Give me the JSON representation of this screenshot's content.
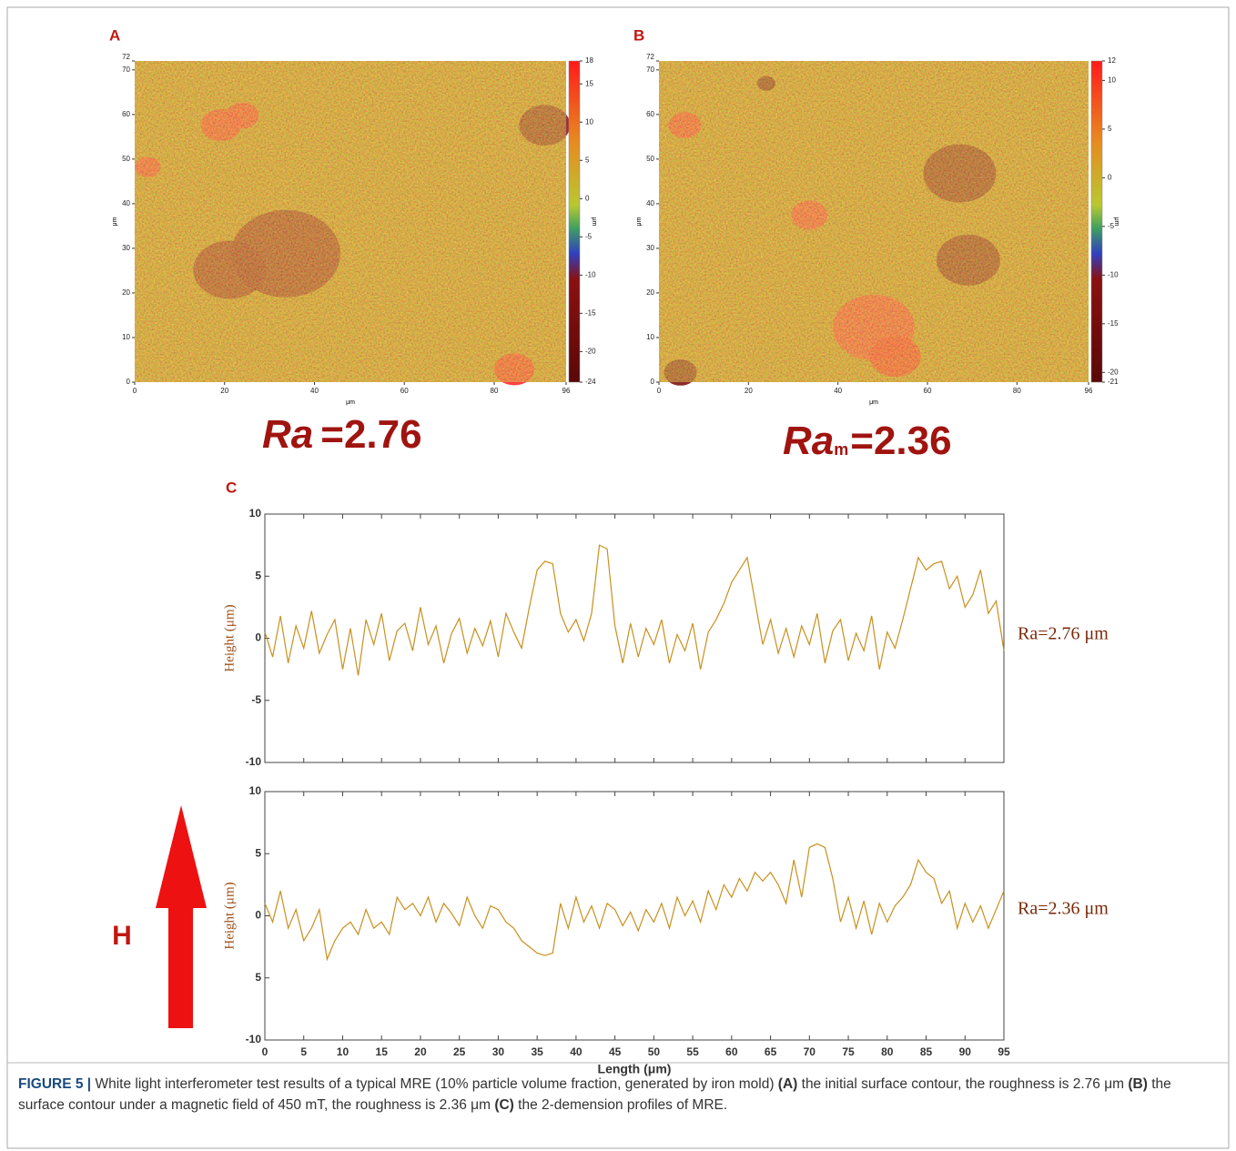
{
  "panel_a": {
    "label": "A",
    "xticks": [
      0,
      20,
      40,
      60,
      80,
      96
    ],
    "xlim": [
      0,
      96
    ],
    "yticks": [
      0,
      10,
      20,
      30,
      40,
      50,
      60,
      70,
      72
    ],
    "ylim": [
      0,
      72
    ],
    "x_axis_label": "μm",
    "y_axis_label": "μm",
    "colorbar_ticks": [
      18,
      15,
      10,
      5,
      0,
      -5,
      -10,
      -15,
      -20,
      -24
    ],
    "colorbar_lim": [
      -24,
      18
    ],
    "colorbar_label": "μm",
    "ra": {
      "symbol": "Ra",
      "value": "=2.76"
    }
  },
  "panel_b": {
    "label": "B",
    "xticks": [
      0,
      20,
      40,
      60,
      80,
      96
    ],
    "xlim": [
      0,
      96
    ],
    "yticks": [
      0,
      10,
      20,
      30,
      40,
      50,
      60,
      70,
      72
    ],
    "ylim": [
      0,
      72
    ],
    "x_axis_label": "μm",
    "y_axis_label": "μm",
    "colorbar_ticks": [
      12,
      10,
      5,
      0,
      -5,
      -10,
      -15,
      -20,
      -21
    ],
    "colorbar_lim": [
      -21,
      12
    ],
    "colorbar_label": "μm",
    "ra": {
      "symbol": "Ra",
      "subscript": "m",
      "value": "=2.36"
    }
  },
  "panel_c": {
    "label": "C",
    "type": "line",
    "x_axis_label": "Length (μm)",
    "xlim": [
      0,
      95
    ],
    "xticks": [
      0,
      5,
      10,
      15,
      20,
      25,
      30,
      35,
      40,
      45,
      50,
      55,
      60,
      65,
      70,
      75,
      80,
      85,
      90,
      95
    ],
    "x": [
      0,
      1,
      2,
      3,
      4,
      5,
      6,
      7,
      8,
      9,
      10,
      11,
      12,
      13,
      14,
      15,
      16,
      17,
      18,
      19,
      20,
      21,
      22,
      23,
      24,
      25,
      26,
      27,
      28,
      29,
      30,
      31,
      32,
      33,
      34,
      35,
      36,
      37,
      38,
      39,
      40,
      41,
      42,
      43,
      44,
      45,
      46,
      47,
      48,
      49,
      50,
      51,
      52,
      53,
      54,
      55,
      56,
      57,
      58,
      59,
      60,
      61,
      62,
      63,
      64,
      65,
      66,
      67,
      68,
      69,
      70,
      71,
      72,
      73,
      74,
      75,
      76,
      77,
      78,
      79,
      80,
      81,
      82,
      83,
      84,
      85,
      86,
      87,
      88,
      89,
      90,
      91,
      92,
      93,
      94,
      95
    ],
    "plots": [
      {
        "y_axis_label": "Height (μm)",
        "annotation": "Ra=2.76 μm",
        "color": "#c8901e",
        "ylim": [
          -10,
          10
        ],
        "yticks": [
          -10,
          -5,
          0,
          5,
          10
        ],
        "values": [
          0.5,
          -1.5,
          1.8,
          -2,
          1,
          -0.8,
          2.2,
          -1.2,
          0.3,
          1.5,
          -2.5,
          0.8,
          -3,
          1.5,
          -0.5,
          2,
          -1.8,
          0.6,
          1.2,
          -1,
          2.5,
          -0.5,
          1,
          -2,
          0.4,
          1.6,
          -1.2,
          0.8,
          -0.6,
          1.4,
          -1.5,
          2,
          0.5,
          -0.8,
          2.5,
          5.5,
          6.2,
          6,
          2,
          0.5,
          1.5,
          -0.2,
          2,
          7.5,
          7.2,
          1,
          -2,
          1.2,
          -1.5,
          0.8,
          -0.5,
          1.5,
          -2,
          0.3,
          -1,
          1.2,
          -2.5,
          0.5,
          1.5,
          2.8,
          4.5,
          5.5,
          6.5,
          3,
          -0.5,
          1.5,
          -1.2,
          0.8,
          -1.5,
          1,
          -0.5,
          2,
          -2,
          0.6,
          1.5,
          -1.8,
          0.4,
          -1,
          1.8,
          -2.5,
          0.5,
          -0.8,
          1.5,
          4,
          6.5,
          5.5,
          6,
          6.2,
          4,
          5,
          2.5,
          3.5,
          5.5,
          2,
          3,
          -1
        ]
      },
      {
        "y_axis_label": "Height (μm)",
        "annotation": "Ra=2.36 μm",
        "color": "#c8901e",
        "ylim": [
          -10,
          10
        ],
        "yticks": [
          -10,
          {
            "value": -5,
            "label": "5"
          },
          0,
          5,
          10
        ],
        "values": [
          1,
          -0.5,
          2,
          -1,
          0.5,
          -2,
          -1,
          0.5,
          -3.5,
          -2,
          -1,
          -0.5,
          -1.5,
          0.5,
          -1,
          -0.5,
          -1.5,
          1.5,
          0.5,
          1,
          0,
          1.5,
          -0.5,
          1,
          0.2,
          -0.8,
          1.5,
          0,
          -1,
          0.8,
          0.5,
          -0.5,
          -1,
          -2,
          -2.5,
          -3,
          -3.2,
          -3,
          1,
          -1,
          1.5,
          -0.5,
          0.8,
          -1,
          1,
          0.5,
          -0.8,
          0.3,
          -1.2,
          0.5,
          -0.5,
          1,
          -1,
          1.5,
          0,
          1.2,
          -0.5,
          2,
          0.5,
          2.5,
          1.5,
          3,
          2,
          3.5,
          2.8,
          3.5,
          2.5,
          1,
          4.5,
          1.5,
          5.5,
          5.8,
          5.5,
          3,
          -0.5,
          1.5,
          -1,
          1.2,
          -1.5,
          1,
          -0.5,
          0.8,
          1.5,
          2.5,
          4.5,
          3.5,
          3,
          1,
          2,
          -1,
          1,
          -0.5,
          0.8,
          -1,
          0.5,
          2
        ]
      }
    ]
  },
  "field_label": "H",
  "caption": [
    {
      "text": "FIGURE 5 |",
      "bold": true
    },
    {
      "text": " White light interferometer test results of a typical MRE (10% particle volume fraction, generated by iron mold) ",
      "bold": false
    },
    {
      "text": "(A)",
      "bold": true
    },
    {
      "text": " the initial surface contour, the roughness is 2.76 μm ",
      "bold": false
    },
    {
      "text": "(B)",
      "bold": true
    },
    {
      "text": " the surface contour under a magnetic field of 450 mT, the roughness is 2.36 μm ",
      "bold": false
    },
    {
      "text": "(C)",
      "bold": true
    },
    {
      "text": " the 2-demension profiles of MRE.",
      "bold": false
    }
  ]
}
